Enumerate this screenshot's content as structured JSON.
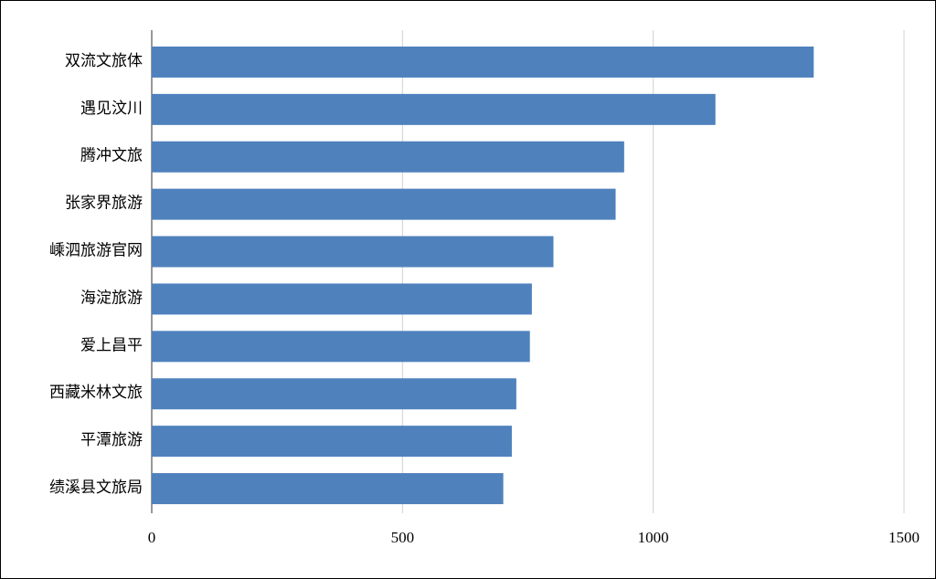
{
  "chart_data": {
    "type": "bar",
    "orientation": "horizontal",
    "categories": [
      "双流文旅体",
      "遇见汶川",
      "腾冲文旅",
      "张家界旅游",
      "嵊泗旅游官网",
      "海淀旅游",
      "爱上昌平",
      "西藏米林文旅",
      "平潭旅游",
      "绩溪县文旅局"
    ],
    "values": [
      1320,
      1124,
      942,
      925,
      801,
      758,
      754,
      727,
      718,
      701
    ],
    "color": "#4f81bd",
    "xlim": [
      0,
      1500
    ],
    "xticks": [
      0,
      500,
      1000,
      1500
    ],
    "grid": true
  }
}
